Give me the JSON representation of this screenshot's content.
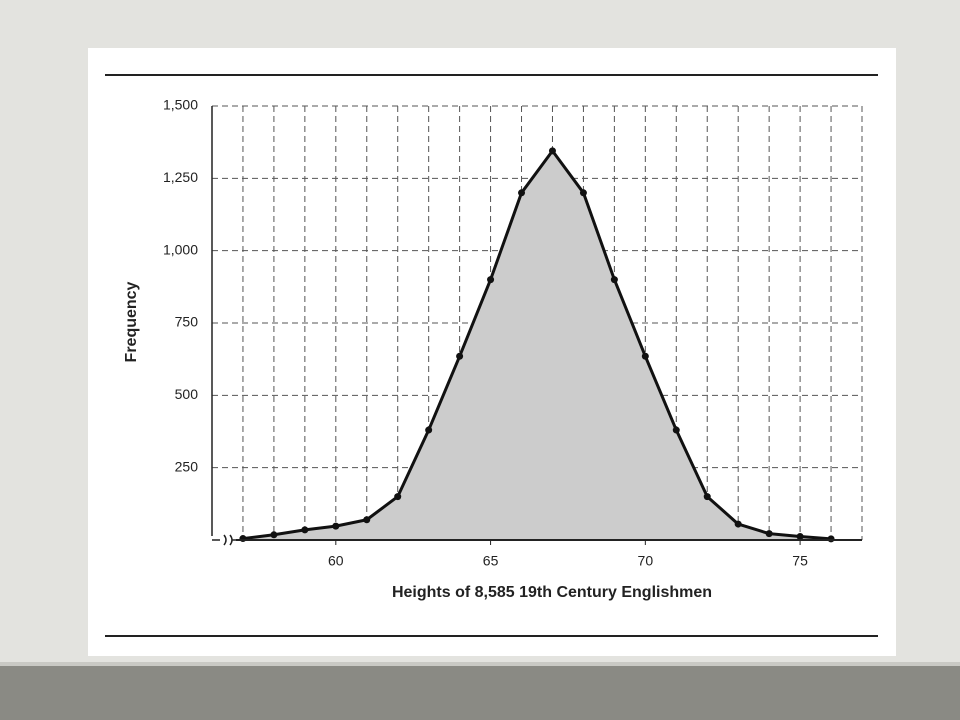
{
  "chart_data": {
    "type": "line",
    "x_label": "Heights of 8,585 19th Century Englishmen",
    "y_label": "Frequency",
    "x": [
      57,
      58,
      59,
      60,
      61,
      62,
      63,
      64,
      65,
      66,
      67,
      68,
      69,
      70,
      71,
      72,
      73,
      74,
      75,
      76
    ],
    "series": [
      {
        "color": "#111111",
        "fill": "#cccccc",
        "values": [
          5,
          18,
          35,
          48,
          70,
          150,
          380,
          635,
          900,
          1200,
          1345,
          1200,
          900,
          635,
          380,
          150,
          55,
          22,
          12,
          4
        ]
      }
    ],
    "xlim": [
      56,
      77
    ],
    "ylim": [
      0,
      1500
    ],
    "xticks": [
      60,
      65,
      70,
      75
    ],
    "xminorticks": [
      57,
      58,
      59,
      60,
      61,
      62,
      63,
      64,
      65,
      66,
      67,
      68,
      69,
      70,
      71,
      72,
      73,
      74,
      75,
      76,
      77
    ],
    "yticks": [
      {
        "value": 250,
        "label": "250"
      },
      {
        "value": 500,
        "label": "500"
      },
      {
        "value": 750,
        "label": "750"
      },
      {
        "value": 1000,
        "label": "1,000"
      },
      {
        "value": 1250,
        "label": "1,250"
      },
      {
        "value": 1500,
        "label": "1,500"
      }
    ],
    "grid": true
  }
}
